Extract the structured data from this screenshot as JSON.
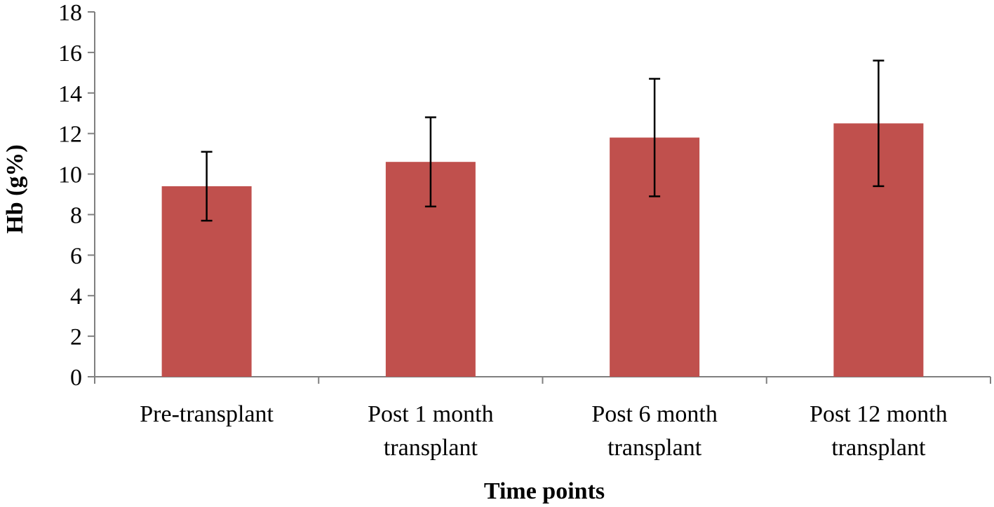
{
  "chart_data": {
    "type": "bar",
    "title": "",
    "xlabel": "Time points",
    "ylabel": "Hb (g%)",
    "ylim": [
      0,
      18
    ],
    "yticks": [
      "0",
      "2",
      "4",
      "6",
      "8",
      "10",
      "12",
      "14",
      "16",
      "18"
    ],
    "categories": [
      [
        "Pre-transplant"
      ],
      [
        "Post 1 month",
        "transplant"
      ],
      [
        "Post 6 month",
        "transplant"
      ],
      [
        "Post 12 month",
        "transplant"
      ]
    ],
    "values": [
      9.4,
      10.6,
      11.8,
      12.5
    ],
    "error_low": [
      7.7,
      8.4,
      8.9,
      9.4
    ],
    "error_high": [
      11.1,
      12.8,
      14.7,
      15.6
    ],
    "bar_color": "#c0504d",
    "grid": false,
    "legend": "none"
  }
}
